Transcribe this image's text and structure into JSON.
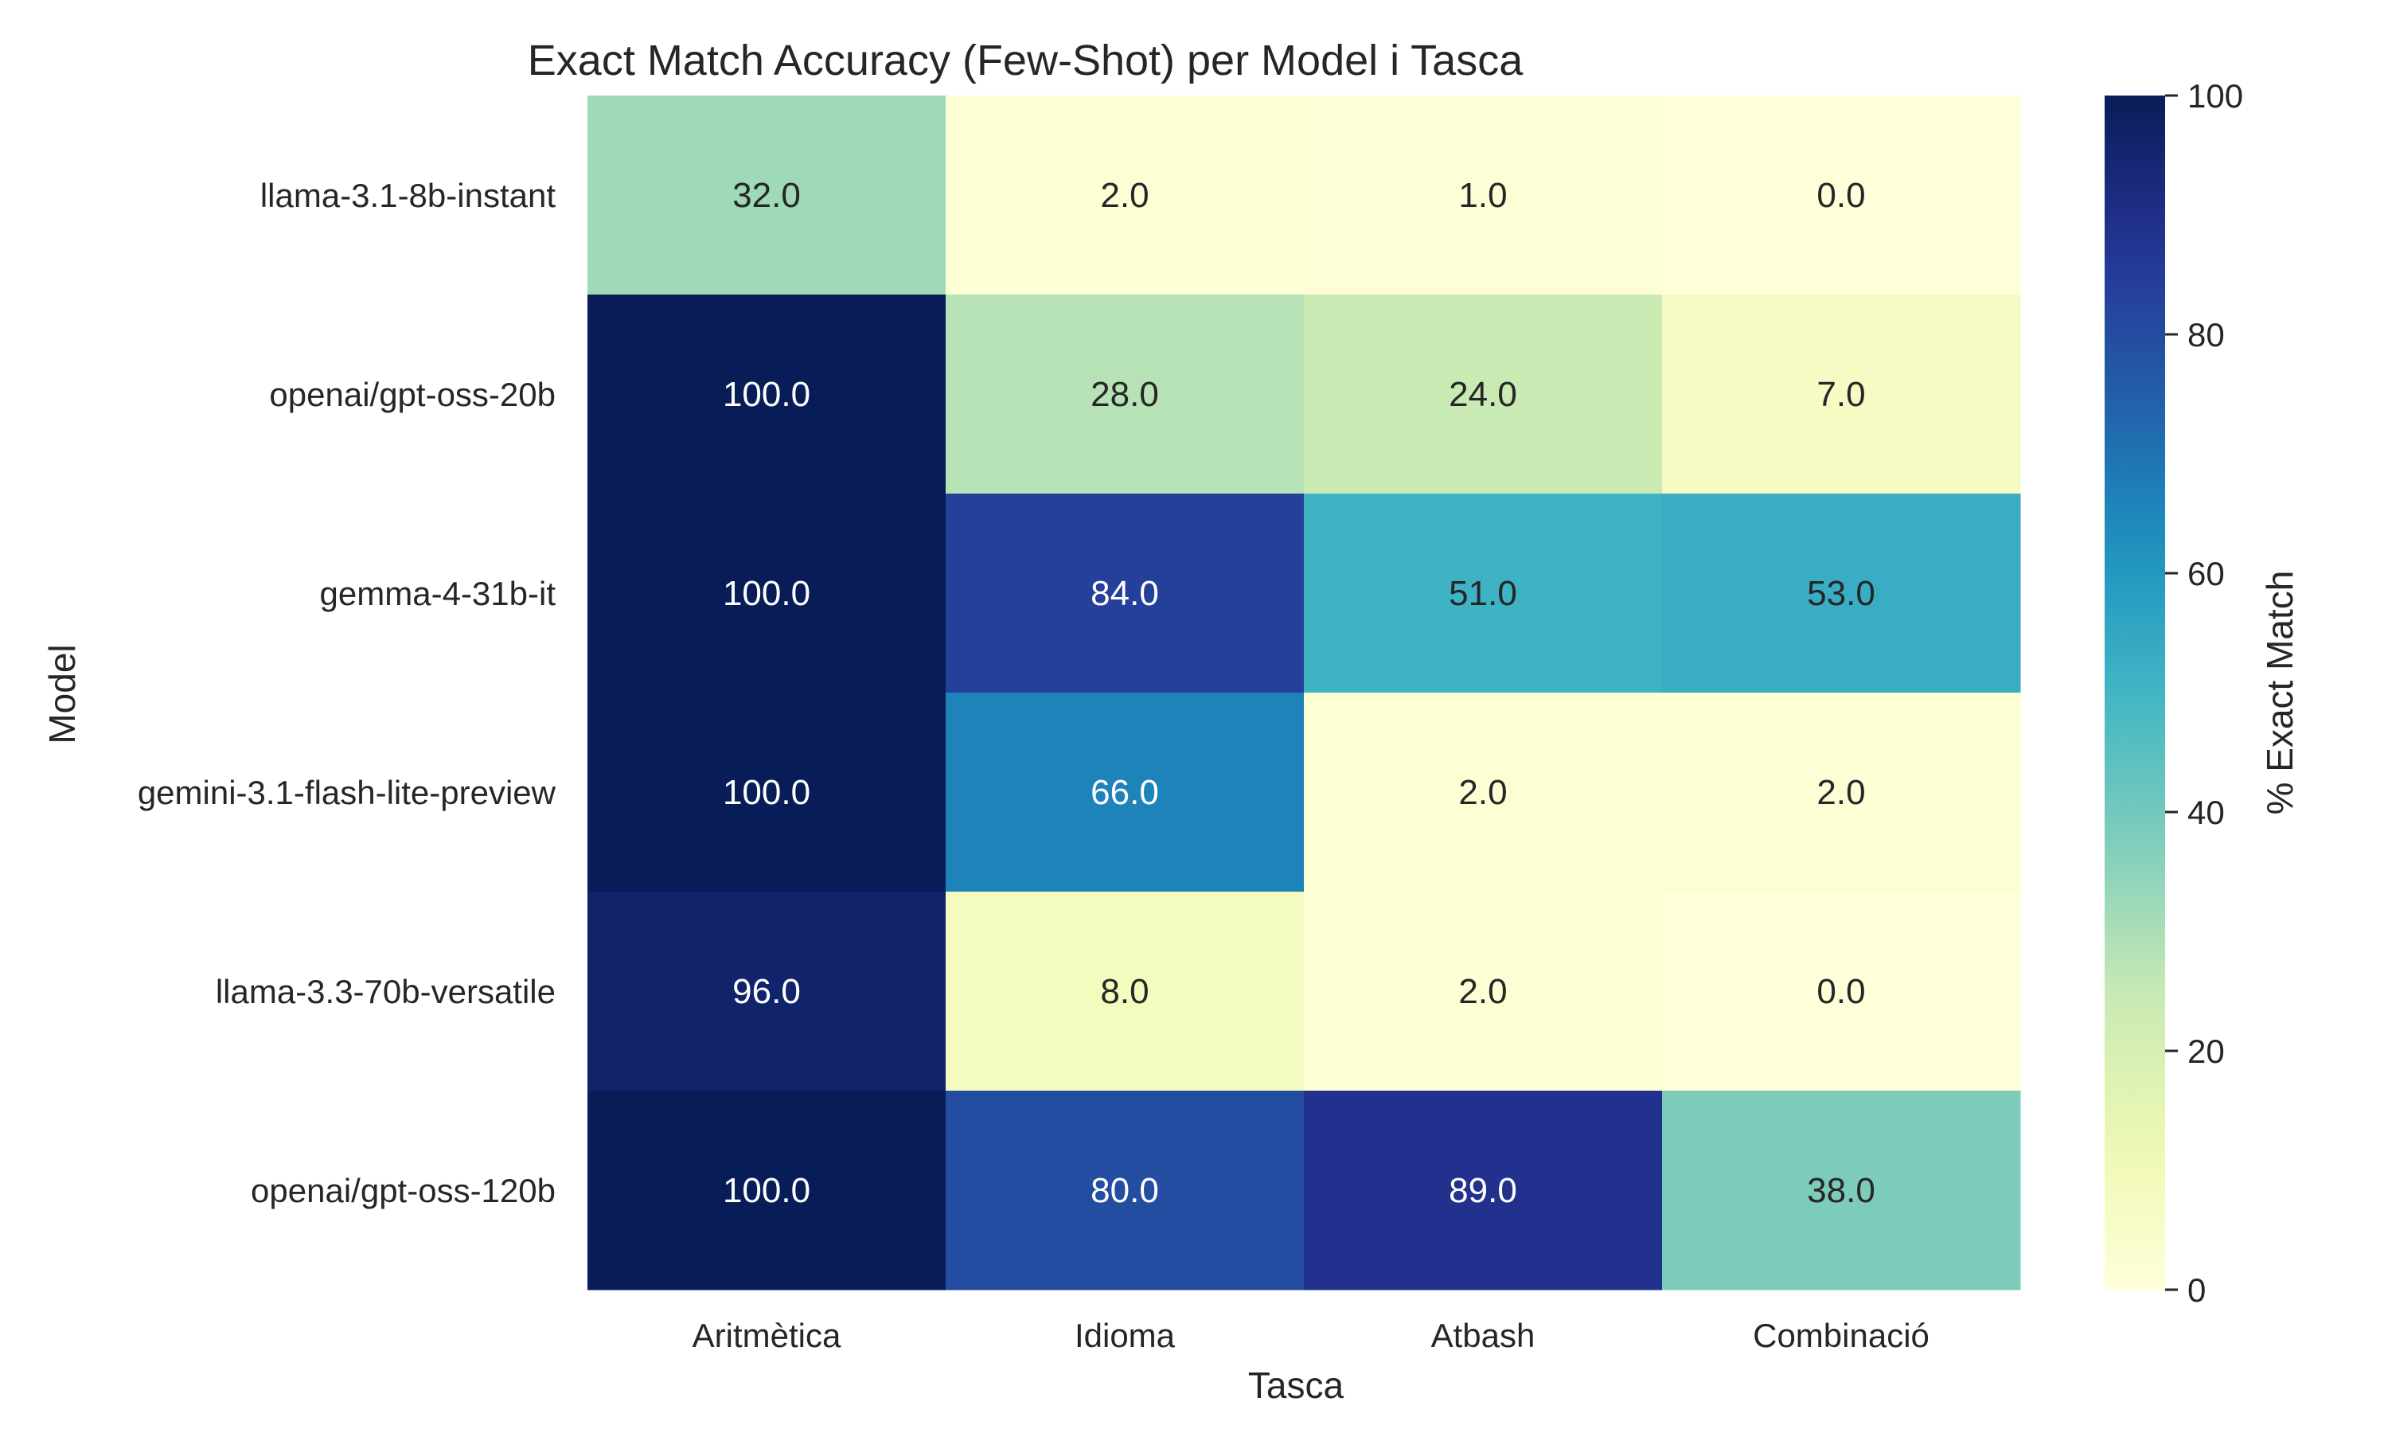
{
  "chart_data": {
    "type": "heatmap",
    "title": "Exact Match Accuracy (Few-Shot) per Model i Tasca",
    "xlabel": "Tasca",
    "ylabel": "Model",
    "colorbar_label": "% Exact Match",
    "colormap": "YlGnBu",
    "vmin": 0,
    "vmax": 100,
    "colorbar_ticks": [
      0,
      20,
      40,
      60,
      80,
      100
    ],
    "x_categories": [
      "Aritmètica",
      "Idioma",
      "Atbash",
      "Combinació"
    ],
    "y_categories": [
      "llama-3.1-8b-instant",
      "openai/gpt-oss-20b",
      "gemma-4-31b-it",
      "gemini-3.1-flash-lite-preview",
      "llama-3.3-70b-versatile",
      "openai/gpt-oss-120b"
    ],
    "values": [
      [
        32.0,
        2.0,
        1.0,
        0.0
      ],
      [
        100.0,
        28.0,
        24.0,
        7.0
      ],
      [
        100.0,
        84.0,
        51.0,
        53.0
      ],
      [
        100.0,
        66.0,
        2.0,
        2.0
      ],
      [
        96.0,
        8.0,
        2.0,
        0.0
      ],
      [
        100.0,
        80.0,
        89.0,
        38.0
      ]
    ],
    "grid": false
  }
}
